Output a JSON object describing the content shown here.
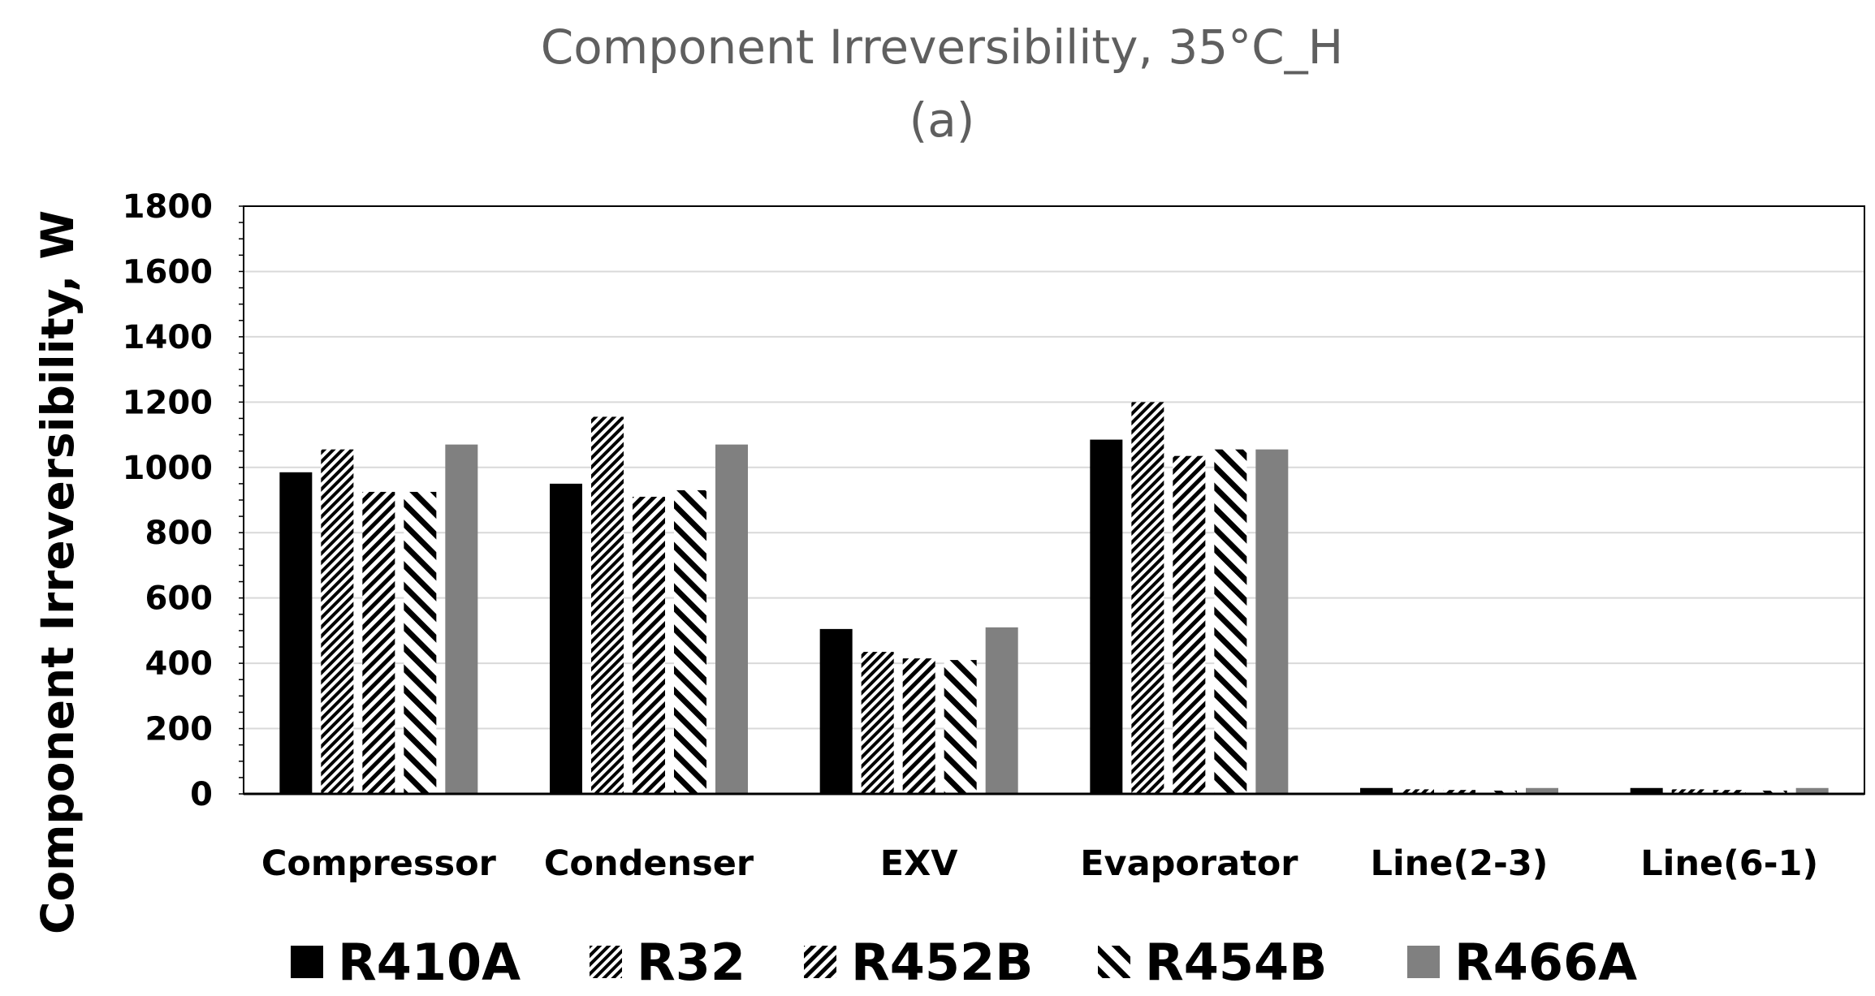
{
  "chart_data": {
    "type": "bar",
    "title": "Component Irreversibility, 35°C_H",
    "subtitle": "(a)",
    "xlabel": "",
    "ylabel": "Component Irreversibility, W",
    "ylim": [
      0,
      1800
    ],
    "yticks": [
      0,
      200,
      400,
      600,
      800,
      1000,
      1200,
      1400,
      1600,
      1800
    ],
    "grid": true,
    "legend_position": "bottom",
    "categories": [
      "Compressor",
      "Condenser",
      "EXV",
      "Evaporator",
      "Line(2-3)",
      "Line(6-1)"
    ],
    "series": [
      {
        "name": "R410A",
        "pattern": "solid-black",
        "values": [
          985,
          950,
          505,
          1085,
          18,
          18
        ]
      },
      {
        "name": "R32",
        "pattern": "dense-diagonal",
        "values": [
          1055,
          1155,
          435,
          1200,
          14,
          14
        ]
      },
      {
        "name": "R452B",
        "pattern": "diagonal",
        "values": [
          925,
          910,
          415,
          1035,
          12,
          12
        ]
      },
      {
        "name": "R454B",
        "pattern": "wide-backslash",
        "values": [
          925,
          930,
          410,
          1055,
          10,
          10
        ]
      },
      {
        "name": "R466A",
        "pattern": "solid-gray",
        "values": [
          1070,
          1070,
          510,
          1055,
          18,
          18
        ]
      }
    ],
    "colors": {
      "black": "#000000",
      "gray": "#808080",
      "grid": "#d9d9d9",
      "title": "#5f5f5f"
    }
  }
}
